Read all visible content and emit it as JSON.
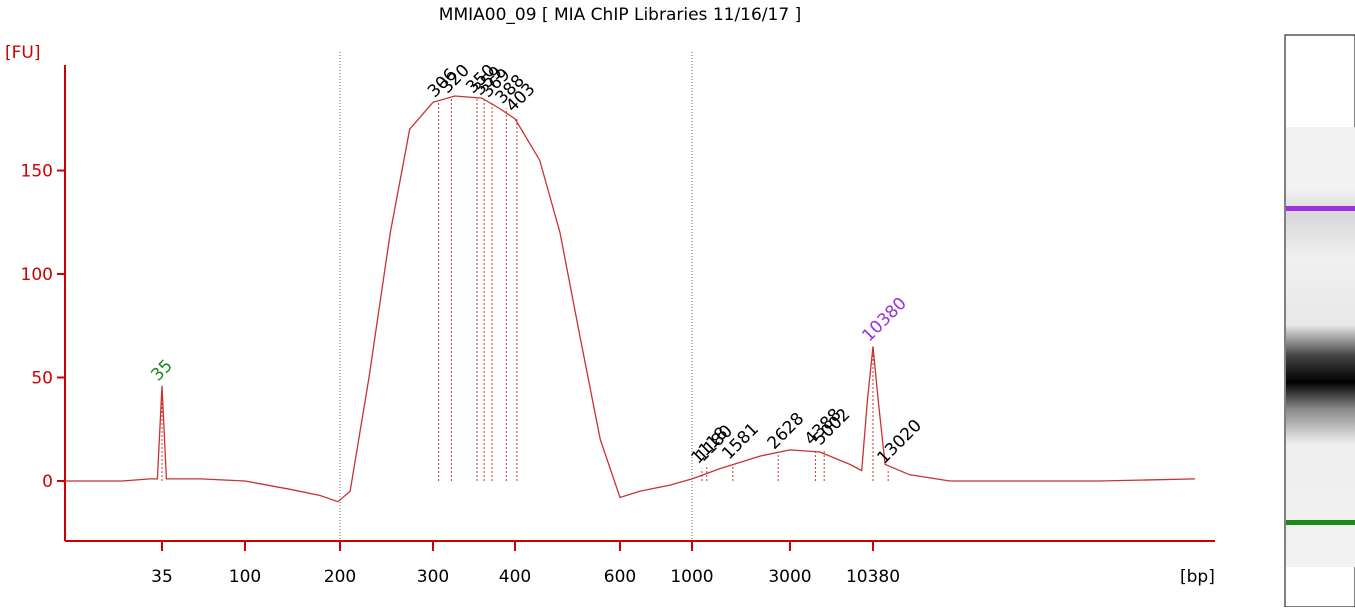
{
  "chart_data": {
    "type": "line",
    "title": "MMIA00_09  [ MIA ChIP Libraries 11/16/17 ]",
    "y_label": "[FU]",
    "x_label": "[bp]",
    "color": "#c83232",
    "axis_color": "#d00000",
    "xlim": [
      10,
      1280000
    ],
    "ylim": [
      -29,
      201
    ],
    "xticks": [
      35,
      100,
      200,
      300,
      400,
      600,
      1000,
      3000,
      10380
    ],
    "yticks": [
      0,
      50,
      100,
      150
    ],
    "region_lines": [
      200,
      1000
    ],
    "x": [
      10,
      21,
      30,
      33,
      35,
      37,
      57,
      100,
      139,
      173,
      197,
      209,
      227,
      249,
      271,
      300,
      324,
      356,
      379,
      400,
      440,
      476,
      514,
      556,
      600,
      690,
      855,
      1000,
      1368,
      2143,
      3000,
      4690,
      7350,
      8770,
      9580,
      10380,
      11190,
      12430,
      18000,
      32800,
      306000,
      1280000
    ],
    "values": [
      0,
      0,
      1,
      1,
      46,
      1,
      1,
      0,
      -4,
      -7,
      -10,
      -5,
      50,
      120,
      170,
      183,
      186,
      185,
      180,
      175,
      155,
      120,
      70,
      20,
      -8,
      -5,
      -2,
      1,
      6,
      12,
      15,
      14,
      8,
      5,
      40,
      65,
      40,
      8,
      3,
      0,
      0,
      1
    ],
    "peaks": {
      "x": [
        35,
        306,
        320,
        350,
        359,
        369,
        388,
        403,
        1118,
        1180,
        1581,
        2628,
        4388,
        5002,
        10380,
        13020
      ],
      "y": [
        46,
        183,
        185,
        185,
        184,
        183,
        180,
        176,
        6,
        7,
        8,
        13,
        15,
        15,
        65,
        6
      ],
      "colors": [
        "#1a8a1a",
        "#000000",
        "#000000",
        "#000000",
        "#000000",
        "#000000",
        "#000000",
        "#000000",
        "#000000",
        "#000000",
        "#000000",
        "#000000",
        "#000000",
        "#000000",
        "#9b30e0",
        "#000000"
      ]
    }
  }
}
